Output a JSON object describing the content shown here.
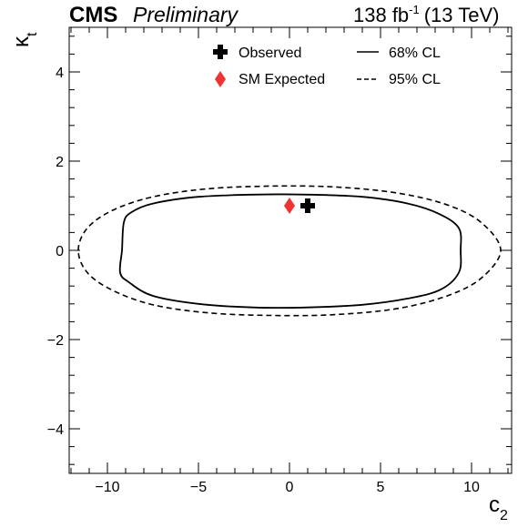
{
  "header": {
    "experiment": "CMS",
    "status": "Preliminary",
    "lumi_value": "138 fb",
    "lumi_exponent": "-1",
    "lumi_energy": "(13 TeV)"
  },
  "chart_data": {
    "type": "contour",
    "xlabel_main": "c",
    "xlabel_sub": "2",
    "ylabel_main": "κ",
    "ylabel_sub": "t",
    "xlim": [
      -12.1,
      12.2
    ],
    "ylim": [
      -5.0,
      5.0
    ],
    "x_ticks": [
      {
        "value": -10,
        "label": "−10"
      },
      {
        "value": -5,
        "label": "−5"
      },
      {
        "value": 0,
        "label": "0"
      },
      {
        "value": 5,
        "label": "5"
      },
      {
        "value": 10,
        "label": "10"
      }
    ],
    "y_ticks": [
      {
        "value": -4,
        "label": "−4"
      },
      {
        "value": -2,
        "label": "−2"
      },
      {
        "value": 0,
        "label": "0"
      },
      {
        "value": 2,
        "label": "2"
      },
      {
        "value": 4,
        "label": "4"
      }
    ],
    "points": {
      "observed": {
        "x": 1.0,
        "y": 1.0
      },
      "sm_expected": {
        "x": 0.0,
        "y": 1.0
      }
    },
    "contours": {
      "cl68": [
        [
          -9.2,
          0.0
        ],
        [
          -9.1,
          0.62
        ],
        [
          -8.7,
          0.85
        ],
        [
          -7.5,
          1.05
        ],
        [
          -5.0,
          1.2
        ],
        [
          -2.0,
          1.25
        ],
        [
          1.0,
          1.25
        ],
        [
          4.0,
          1.2
        ],
        [
          6.5,
          1.05
        ],
        [
          8.2,
          0.82
        ],
        [
          9.3,
          0.5
        ],
        [
          9.4,
          0.0
        ],
        [
          9.3,
          -0.5
        ],
        [
          8.3,
          -0.88
        ],
        [
          6.5,
          -1.08
        ],
        [
          4.0,
          -1.22
        ],
        [
          1.0,
          -1.28
        ],
        [
          -2.0,
          -1.28
        ],
        [
          -5.0,
          -1.2
        ],
        [
          -7.5,
          -1.02
        ],
        [
          -8.8,
          -0.72
        ],
        [
          -9.3,
          -0.5
        ],
        [
          -9.2,
          0.0
        ]
      ],
      "cl95": [
        [
          -11.6,
          0.0
        ],
        [
          -11.1,
          0.5
        ],
        [
          -9.7,
          0.9
        ],
        [
          -7.5,
          1.2
        ],
        [
          -4.5,
          1.38
        ],
        [
          -1.0,
          1.44
        ],
        [
          2.5,
          1.42
        ],
        [
          6.0,
          1.28
        ],
        [
          8.8,
          1.0
        ],
        [
          10.6,
          0.6
        ],
        [
          11.6,
          0.0
        ],
        [
          10.6,
          -0.6
        ],
        [
          8.8,
          -1.0
        ],
        [
          6.0,
          -1.3
        ],
        [
          2.5,
          -1.44
        ],
        [
          -1.0,
          -1.46
        ],
        [
          -4.5,
          -1.4
        ],
        [
          -7.5,
          -1.22
        ],
        [
          -9.7,
          -0.9
        ],
        [
          -11.1,
          -0.5
        ],
        [
          -11.6,
          0.0
        ]
      ]
    },
    "legend": {
      "placement": "top",
      "observed_label": "Observed",
      "sm_label": "SM Expected",
      "cl68_label": "68% CL",
      "cl95_label": "95% CL"
    },
    "colors": {
      "observed": "#000000",
      "sm_expected": "#ee3333",
      "contour": "#000000"
    },
    "grid": false
  }
}
